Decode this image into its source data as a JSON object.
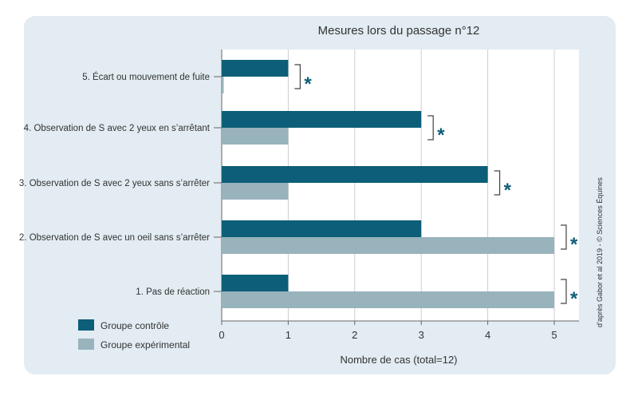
{
  "chart_data": {
    "type": "bar",
    "orientation": "horizontal",
    "title": "Mesures lors du passage n°12",
    "xlabel": "Nombre de cas (total=12)",
    "ylabel": "",
    "xlim": [
      0,
      5.4
    ],
    "xticks": [
      "0",
      "1",
      "2",
      "3",
      "4",
      "5"
    ],
    "grid": true,
    "legend_position": "bottom-left",
    "categories": [
      "5. Écart ou mouvement de fuite",
      "4. Observation de S avec 2 yeux en s’arrêtant",
      "3. Observation de S avec 2 yeux sans s’arrêter",
      "2. Observation de S avec un oeil sans s’arrêter",
      "1. Pas de réaction"
    ],
    "series": [
      {
        "name": "Groupe contrôle",
        "color": "#0d5e78",
        "values": [
          1,
          3,
          4,
          3,
          1
        ]
      },
      {
        "name": "Groupe expérimental",
        "color": "#98b3bc",
        "values": [
          0.03,
          1,
          1,
          5,
          5
        ]
      }
    ],
    "significance_marker": "*",
    "credit": "d’après Gabor et al 2019 - © Sciences Équines"
  }
}
